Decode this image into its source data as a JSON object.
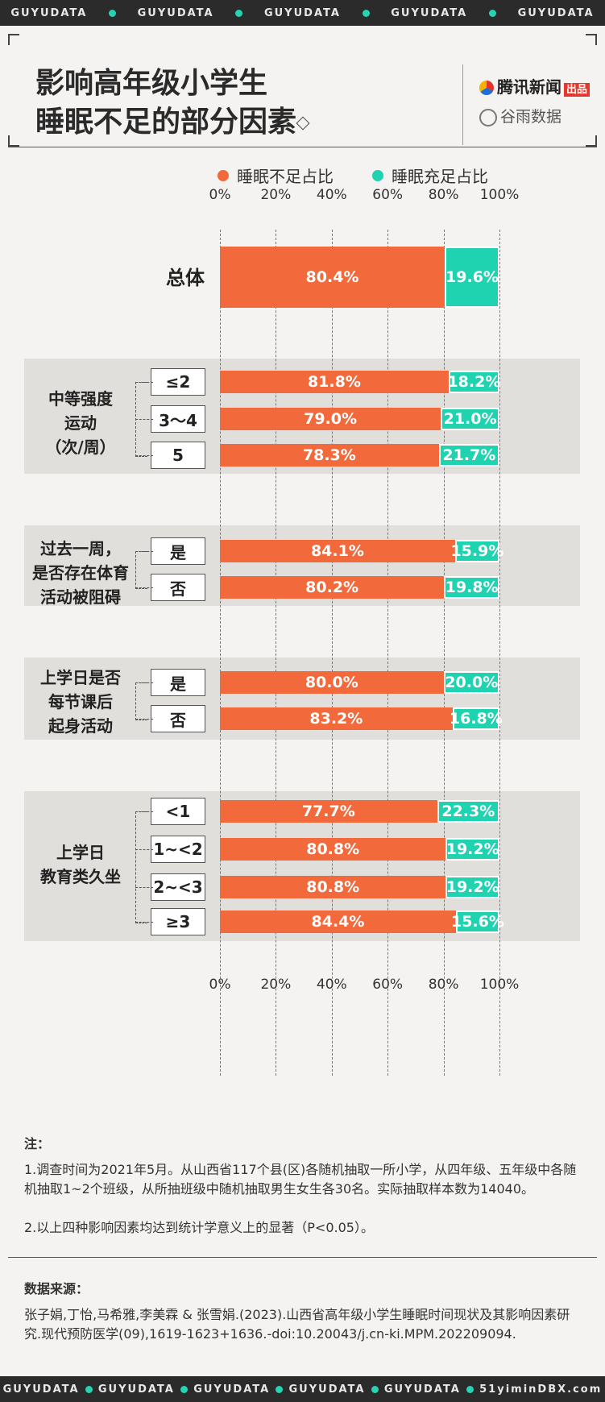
{
  "banner": [
    "GUYUDATA",
    "GUYUDATA",
    "GUYUDATA",
    "GUYUDATA",
    "GUYUDATA"
  ],
  "banner_bottom": [
    "GUYUDATA",
    "GUYUDATA",
    "GUYUDATA",
    "GUYUDATA",
    "GUYUDATA",
    "51yiminDBX.com"
  ],
  "header": {
    "title_line1": "影响高年级小学生",
    "title_line2": "睡眠不足的部分因素",
    "brand1": "腾讯新闻",
    "brand1_tag": "出品",
    "brand2": "谷雨数据"
  },
  "colors": {
    "insufficient": "#f26a3c",
    "sufficient": "#1fd3b0"
  },
  "chart_data": {
    "type": "bar",
    "orientation": "horizontal",
    "stacked": true,
    "xlim": [
      0,
      100
    ],
    "ticks": [
      "0%",
      "20%",
      "40%",
      "60%",
      "80%",
      "100%"
    ],
    "legend": [
      "睡眠不足占比",
      "睡眠充足占比"
    ],
    "legend_position": "top",
    "groups": [
      {
        "label": "总体",
        "rows": [
          {
            "category": "",
            "insufficient": 80.4,
            "sufficient": 19.6
          }
        ]
      },
      {
        "label": "中等强度\n运动\n（次/周）",
        "rows": [
          {
            "category": "≤2",
            "insufficient": 81.8,
            "sufficient": 18.2
          },
          {
            "category": "3～4",
            "insufficient": 79.0,
            "sufficient": 21.0
          },
          {
            "category": "5",
            "insufficient": 78.3,
            "sufficient": 21.7
          }
        ]
      },
      {
        "label": "过去一周，\n是否存在体育\n活动被阻碍",
        "rows": [
          {
            "category": "是",
            "insufficient": 84.1,
            "sufficient": 15.9
          },
          {
            "category": "否",
            "insufficient": 80.2,
            "sufficient": 19.8
          }
        ]
      },
      {
        "label": "上学日是否\n每节课后\n起身活动",
        "rows": [
          {
            "category": "是",
            "insufficient": 80.0,
            "sufficient": 20.0
          },
          {
            "category": "否",
            "insufficient": 83.2,
            "sufficient": 16.8
          }
        ]
      },
      {
        "label": "上学日\n教育类久坐",
        "rows": [
          {
            "category": "<1",
            "insufficient": 77.7,
            "sufficient": 22.3
          },
          {
            "category": "1~<2",
            "insufficient": 80.8,
            "sufficient": 19.2
          },
          {
            "category": "2~<3",
            "insufficient": 80.8,
            "sufficient": 19.2
          },
          {
            "category": "≥3",
            "insufficient": 84.4,
            "sufficient": 15.6
          }
        ]
      }
    ]
  },
  "notes": {
    "heading": "注：",
    "line1": "1.调查时间为2021年5月。从山西省117个县(区)各随机抽取一所小学，从四年级、五年级中各随机抽取1~2个班级，从所抽班级中随机抽取男生女生各30名。实际抽取样本数为14040。",
    "line2": "2.以上四种影响因素均达到统计学意义上的显著（P<0.05）。"
  },
  "source": {
    "heading": "数据来源：",
    "text": "张子娟,丁怡,马希雅,李美霖 & 张雪娟.(2023).山西省高年级小学生睡眠时间现状及其影响因素研究.现代预防医学(09),1619-1623+1636.-doi:10.20043/j.cn-ki.MPM.202209094."
  }
}
